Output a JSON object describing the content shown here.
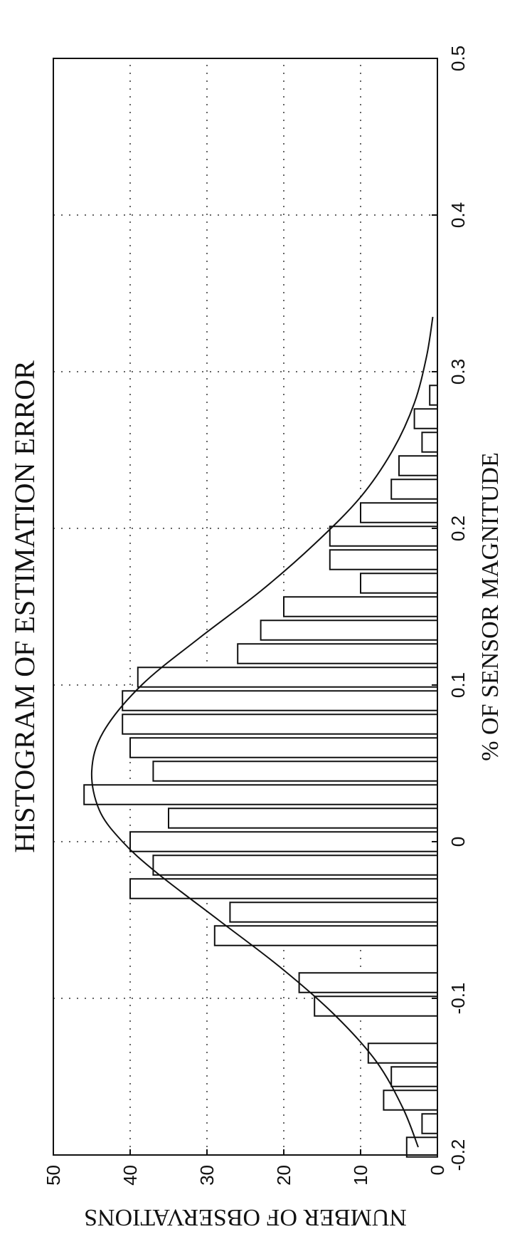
{
  "chart_data": {
    "type": "bar",
    "title": "HISTOGRAM OF ESTIMATION ERROR",
    "xlabel": "% OF SENSOR MAGNITUDE",
    "ylabel": "NUMBER OF OBSERVATIONS",
    "xlim": [
      -0.2,
      0.5
    ],
    "ylim": [
      0,
      50
    ],
    "xticks": [
      "-0.2",
      "-0.1",
      "0",
      "0.1",
      "0.2",
      "0.3",
      "0.4",
      "0.5"
    ],
    "yticks": [
      "0",
      "10",
      "20",
      "30",
      "40",
      "50"
    ],
    "grid": true,
    "bar_width": 0.0125,
    "bins": [
      {
        "x": -0.195,
        "value": 4
      },
      {
        "x": -0.18,
        "value": 2
      },
      {
        "x": -0.165,
        "value": 7
      },
      {
        "x": -0.15,
        "value": 6
      },
      {
        "x": -0.135,
        "value": 9
      },
      {
        "x": -0.12,
        "value": 0
      },
      {
        "x": -0.105,
        "value": 16
      },
      {
        "x": -0.09,
        "value": 18
      },
      {
        "x": -0.075,
        "value": 0
      },
      {
        "x": -0.06,
        "value": 29
      },
      {
        "x": -0.045,
        "value": 27
      },
      {
        "x": -0.03,
        "value": 40
      },
      {
        "x": -0.015,
        "value": 37
      },
      {
        "x": 0.0,
        "value": 40
      },
      {
        "x": 0.015,
        "value": 35
      },
      {
        "x": 0.03,
        "value": 46
      },
      {
        "x": 0.045,
        "value": 37
      },
      {
        "x": 0.06,
        "value": 40
      },
      {
        "x": 0.075,
        "value": 41
      },
      {
        "x": 0.09,
        "value": 41
      },
      {
        "x": 0.105,
        "value": 39
      },
      {
        "x": 0.12,
        "value": 26
      },
      {
        "x": 0.135,
        "value": 23
      },
      {
        "x": 0.15,
        "value": 20
      },
      {
        "x": 0.165,
        "value": 10
      },
      {
        "x": 0.18,
        "value": 14
      },
      {
        "x": 0.195,
        "value": 14
      },
      {
        "x": 0.21,
        "value": 10
      },
      {
        "x": 0.225,
        "value": 6
      },
      {
        "x": 0.24,
        "value": 5
      },
      {
        "x": 0.255,
        "value": 2
      },
      {
        "x": 0.27,
        "value": 3
      },
      {
        "x": 0.285,
        "value": 1
      }
    ],
    "fit_curve": {
      "type": "gaussian",
      "x": [
        -0.195,
        -0.17,
        -0.14,
        -0.11,
        -0.08,
        -0.05,
        -0.02,
        0.0,
        0.02,
        0.045,
        0.07,
        0.1,
        0.13,
        0.16,
        0.19,
        0.22,
        0.25,
        0.28,
        0.31,
        0.335
      ],
      "y": [
        2.5,
        4.5,
        8,
        13.5,
        20.5,
        28.5,
        36.5,
        41,
        44,
        45,
        43.5,
        38.5,
        31,
        23,
        16,
        10,
        5.8,
        3,
        1.4,
        0.6
      ]
    }
  }
}
